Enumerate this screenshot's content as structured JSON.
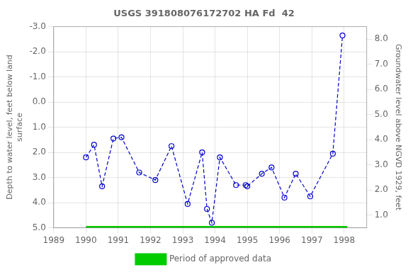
{
  "chart_data": {
    "type": "line",
    "title": "USGS 391808076172702 HA Fd  42",
    "y_label": "Depth to water level, feet below land\nsurface",
    "y2_label": "Groundwater level above NGVD 1929, feet",
    "series": [
      {
        "type": "line",
        "color": "#0000cc",
        "marker": "circle",
        "line_style": "dashed",
        "x": [
          1990.0,
          1990.25,
          1990.5,
          1990.85,
          1991.1,
          1991.65,
          1992.15,
          1992.65,
          1993.15,
          1993.6,
          1993.75,
          1993.9,
          1994.15,
          1994.65,
          1994.95,
          1995.0,
          1995.45,
          1995.75,
          1996.15,
          1996.5,
          1996.95,
          1997.65,
          1997.95
        ],
        "values": [
          2.2,
          1.7,
          3.35,
          1.45,
          1.4,
          2.8,
          3.1,
          1.75,
          4.05,
          2.0,
          4.25,
          4.8,
          2.2,
          3.3,
          3.3,
          3.35,
          2.85,
          2.6,
          3.8,
          2.85,
          3.75,
          2.05,
          -2.65
        ]
      },
      {
        "name": "Period of approved data",
        "type": "line",
        "color": "#00cc00",
        "marker": "none",
        "line_style": "solid",
        "x": [
          1990.0,
          1998.1
        ],
        "values": [
          5.0,
          5.0
        ]
      }
    ],
    "xlim": [
      1989.0,
      1998.7
    ],
    "xticks": [
      1989,
      1990,
      1991,
      1992,
      1993,
      1994,
      1995,
      1996,
      1997,
      1998
    ],
    "ylim": [
      5.0,
      -3.0
    ],
    "yticks": [
      {
        "value": 5.0,
        "label": "5.0"
      },
      {
        "value": 4.0,
        "label": "4.0"
      },
      {
        "value": 3.0,
        "label": "3.0"
      },
      {
        "value": 2.0,
        "label": "2.0"
      },
      {
        "value": 1.0,
        "label": "1.0"
      },
      {
        "value": 0.0,
        "label": "0.0"
      },
      {
        "value": -1.0,
        "label": "-1.0"
      },
      {
        "value": -2.0,
        "label": "-2.0"
      },
      {
        "value": -3.0,
        "label": "-3.0"
      }
    ],
    "y2lim": [
      0.5,
      8.5
    ],
    "y2ticks": [
      {
        "value": 1.0,
        "label": "1.0"
      },
      {
        "value": 2.0,
        "label": "2.0"
      },
      {
        "value": 3.0,
        "label": "3.0"
      },
      {
        "value": 4.0,
        "label": "4.0"
      },
      {
        "value": 5.0,
        "label": "5.0"
      },
      {
        "value": 6.0,
        "label": "6.0"
      },
      {
        "value": 7.0,
        "label": "7.0"
      },
      {
        "value": 8.0,
        "label": "8.0"
      }
    ],
    "grid": true,
    "legend": "bottom"
  }
}
